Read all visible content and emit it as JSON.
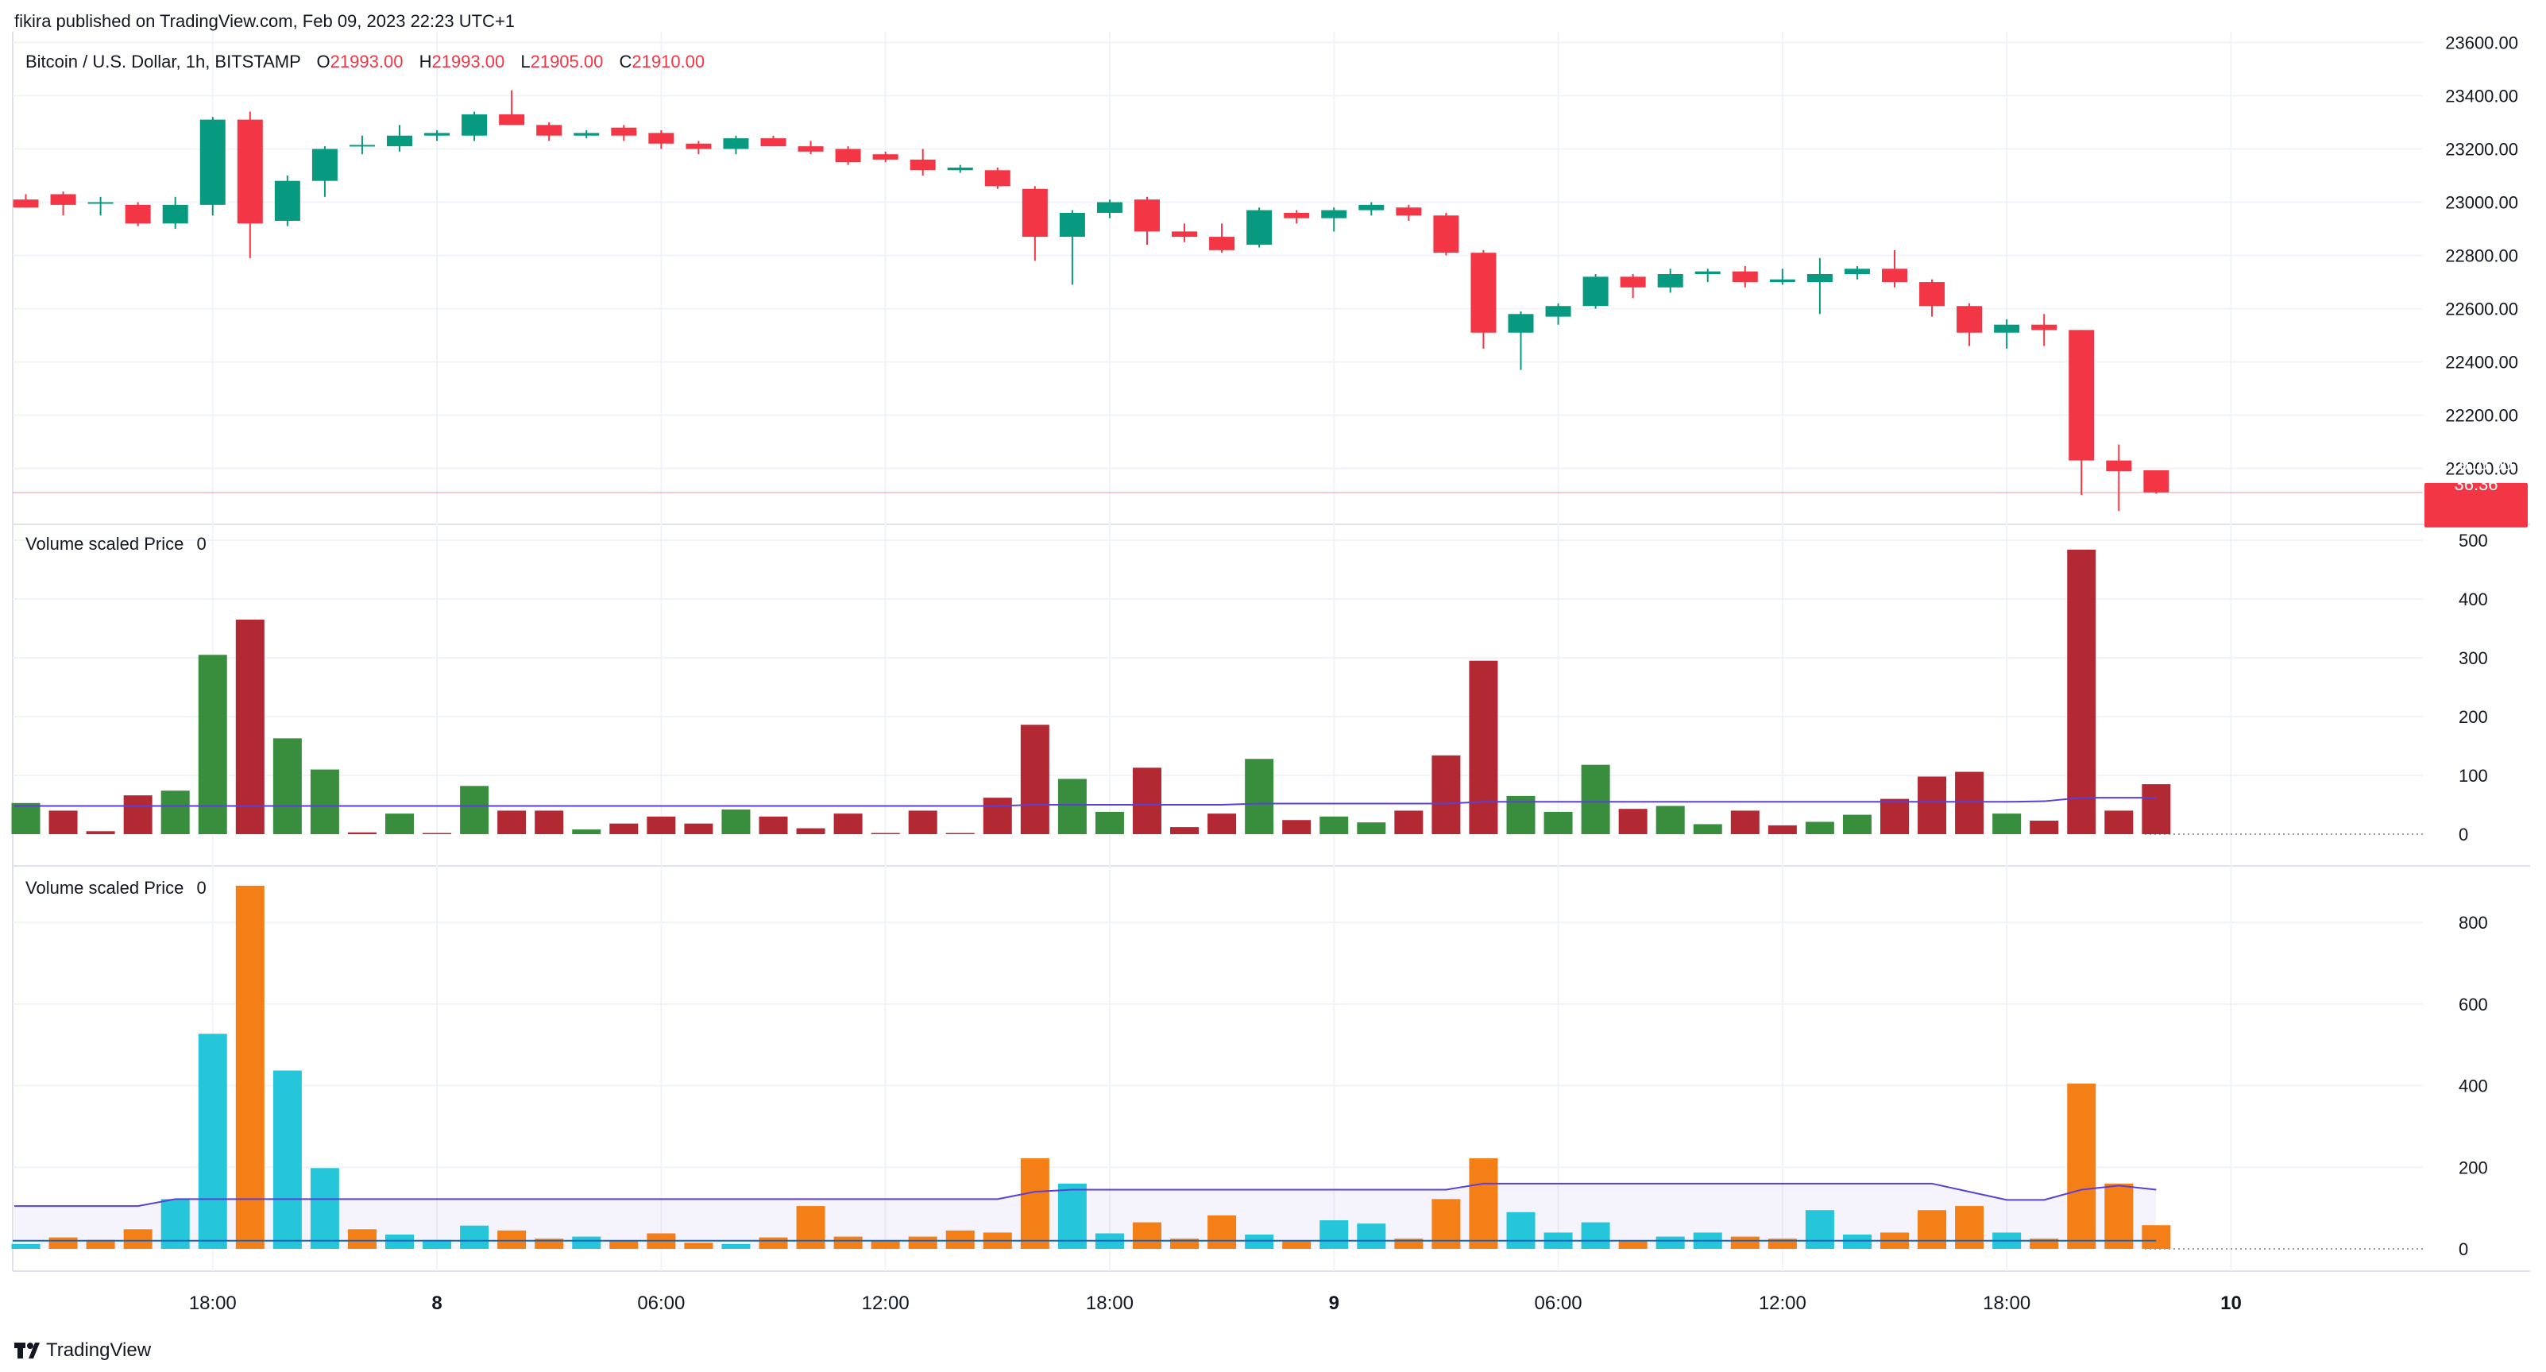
{
  "header": {
    "published": "fikira published on TradingView.com, Feb 09, 2023 22:23 UTC+1"
  },
  "footer": {
    "brand": "TradingView"
  },
  "colors": {
    "up": "#089981",
    "down": "#f23645",
    "vol_up": "#388e3c",
    "vol_down": "#b22833",
    "vol2_up": "#26c6da",
    "vol2_down": "#f57f17",
    "ma": "#5b3fd6",
    "grid": "#f0f3fa",
    "text": "#131722",
    "muted": "#787b86"
  },
  "chart_data": [
    {
      "type": "candlestick",
      "pane": "price",
      "legend": {
        "symbol": "Bitcoin / U.S. Dollar, 1h, BITSTAMP",
        "o_label": "O",
        "o": "21993.00",
        "h_label": "H",
        "h": "21993.00",
        "l_label": "L",
        "l": "21905.00",
        "c_label": "C",
        "c": "21910.00"
      },
      "last_price_label": "21910.00",
      "countdown_label": "36:36",
      "last_price": 21910,
      "ylim": [
        21820,
        23640
      ],
      "yticks": [
        22000,
        22200,
        22400,
        22600,
        22800,
        23000,
        23200,
        23400,
        23600
      ],
      "ytick_labels": [
        "22000.00",
        "22200.00",
        "22400.00",
        "22600.00",
        "22800.00",
        "23000.00",
        "23200.00",
        "23400.00",
        "23600.00"
      ],
      "x_labels": [
        {
          "index": 5,
          "text": "18:00",
          "bold": false
        },
        {
          "index": 11,
          "text": "8",
          "bold": true
        },
        {
          "index": 17,
          "text": "06:00",
          "bold": false
        },
        {
          "index": 23,
          "text": "12:00",
          "bold": false
        },
        {
          "index": 29,
          "text": "18:00",
          "bold": false
        },
        {
          "index": 35,
          "text": "9",
          "bold": true
        },
        {
          "index": 41,
          "text": "06:00",
          "bold": false
        },
        {
          "index": 47,
          "text": "12:00",
          "bold": false
        },
        {
          "index": 53,
          "text": "18:00",
          "bold": false
        },
        {
          "index": 59,
          "text": "10",
          "bold": true
        }
      ],
      "ohlc": [
        [
          23010,
          23030,
          22980,
          22980
        ],
        [
          23030,
          23040,
          22950,
          22990
        ],
        [
          22995,
          23020,
          22950,
          23000
        ],
        [
          22990,
          23000,
          22910,
          22920
        ],
        [
          22920,
          23020,
          22900,
          22990
        ],
        [
          22990,
          23320,
          22950,
          23310
        ],
        [
          23310,
          23340,
          22790,
          22920
        ],
        [
          22930,
          23100,
          22910,
          23080
        ],
        [
          23080,
          23210,
          23020,
          23200
        ],
        [
          23210,
          23250,
          23180,
          23215
        ],
        [
          23210,
          23290,
          23190,
          23250
        ],
        [
          23250,
          23270,
          23230,
          23260
        ],
        [
          23250,
          23340,
          23230,
          23330
        ],
        [
          23330,
          23420,
          23300,
          23290
        ],
        [
          23290,
          23300,
          23230,
          23250
        ],
        [
          23250,
          23270,
          23240,
          23260
        ],
        [
          23280,
          23290,
          23230,
          23250
        ],
        [
          23260,
          23270,
          23200,
          23220
        ],
        [
          23220,
          23230,
          23180,
          23200
        ],
        [
          23200,
          23250,
          23180,
          23240
        ],
        [
          23240,
          23250,
          23210,
          23210
        ],
        [
          23210,
          23230,
          23180,
          23190
        ],
        [
          23200,
          23210,
          23140,
          23150
        ],
        [
          23180,
          23190,
          23150,
          23160
        ],
        [
          23160,
          23200,
          23100,
          23120
        ],
        [
          23120,
          23140,
          23110,
          23130
        ],
        [
          23120,
          23130,
          23050,
          23060
        ],
        [
          23050,
          23060,
          22780,
          22870
        ],
        [
          22870,
          22970,
          22690,
          22960
        ],
        [
          22960,
          23010,
          22940,
          23000
        ],
        [
          23010,
          23020,
          22840,
          22890
        ],
        [
          22890,
          22920,
          22850,
          22870
        ],
        [
          22870,
          22920,
          22810,
          22820
        ],
        [
          22840,
          22980,
          22830,
          22970
        ],
        [
          22960,
          22970,
          22920,
          22940
        ],
        [
          22940,
          22980,
          22890,
          22970
        ],
        [
          22970,
          23000,
          22950,
          22990
        ],
        [
          22980,
          22990,
          22930,
          22950
        ],
        [
          22950,
          22960,
          22800,
          22810
        ],
        [
          22810,
          22820,
          22450,
          22510
        ],
        [
          22510,
          22590,
          22370,
          22580
        ],
        [
          22570,
          22620,
          22540,
          22610
        ],
        [
          22610,
          22730,
          22600,
          22720
        ],
        [
          22720,
          22730,
          22640,
          22680
        ],
        [
          22680,
          22750,
          22660,
          22730
        ],
        [
          22730,
          22750,
          22700,
          22740
        ],
        [
          22740,
          22760,
          22680,
          22700
        ],
        [
          22700,
          22750,
          22690,
          22710
        ],
        [
          22700,
          22790,
          22580,
          22730
        ],
        [
          22730,
          22760,
          22710,
          22750
        ],
        [
          22750,
          22820,
          22680,
          22700
        ],
        [
          22700,
          22710,
          22570,
          22610
        ],
        [
          22610,
          22620,
          22460,
          22510
        ],
        [
          22510,
          22560,
          22450,
          22540
        ],
        [
          22540,
          22580,
          22460,
          22520
        ],
        [
          22520,
          22520,
          21900,
          22030
        ],
        [
          22030,
          22090,
          21840,
          21990
        ],
        [
          21993,
          21993,
          21905,
          21910
        ]
      ]
    },
    {
      "type": "bar",
      "pane": "volume-1",
      "title": "Volume scaled Price",
      "title_value": "0",
      "ylim": [
        0,
        500
      ],
      "yticks": [
        0,
        100,
        200,
        300,
        400,
        500
      ],
      "values": [
        53,
        40,
        5,
        66,
        74,
        305,
        365,
        163,
        110,
        3,
        35,
        2,
        82,
        40,
        40,
        8,
        18,
        30,
        18,
        42,
        30,
        10,
        35,
        2,
        40,
        2,
        62,
        186,
        94,
        38,
        113,
        12,
        35,
        128,
        24,
        30,
        20,
        40,
        134,
        295,
        65,
        38,
        118,
        43,
        48,
        17,
        40,
        15,
        21,
        33,
        60,
        98,
        106,
        35,
        23,
        484,
        40,
        85
      ],
      "up": [
        true,
        false,
        false,
        false,
        true,
        true,
        false,
        true,
        true,
        false,
        true,
        false,
        true,
        false,
        false,
        true,
        false,
        false,
        false,
        true,
        false,
        false,
        false,
        false,
        false,
        false,
        false,
        false,
        true,
        true,
        false,
        false,
        false,
        true,
        false,
        true,
        true,
        false,
        false,
        false,
        true,
        true,
        true,
        false,
        true,
        true,
        false,
        false,
        true,
        true,
        false,
        false,
        false,
        true,
        false,
        false,
        false,
        false
      ],
      "ma": [
        48,
        48,
        48,
        48,
        48,
        48,
        48,
        48,
        48,
        48,
        48,
        48,
        48,
        48,
        48,
        48,
        48,
        48,
        48,
        48,
        48,
        48,
        48,
        48,
        48,
        48,
        48,
        50,
        50,
        50,
        50,
        50,
        50,
        52,
        52,
        52,
        52,
        52,
        52,
        55,
        55,
        55,
        55,
        55,
        55,
        55,
        55,
        55,
        55,
        55,
        55,
        55,
        55,
        55,
        56,
        62,
        62,
        62
      ]
    },
    {
      "type": "bar",
      "pane": "volume-2",
      "title": "Volume scaled Price",
      "title_value": "0",
      "ylim": [
        0,
        880
      ],
      "yticks": [
        0,
        200,
        400,
        600,
        800
      ],
      "values": [
        12,
        28,
        22,
        48,
        122,
        527,
        890,
        437,
        198,
        48,
        35,
        22,
        57,
        45,
        25,
        30,
        20,
        38,
        15,
        12,
        28,
        105,
        30,
        20,
        30,
        45,
        40,
        222,
        160,
        38,
        65,
        25,
        82,
        35,
        20,
        70,
        62,
        25,
        122,
        222,
        90,
        40,
        65,
        20,
        30,
        40,
        30,
        25,
        95,
        35,
        40,
        95,
        105,
        40,
        25,
        405,
        160,
        58
      ],
      "up": [
        true,
        false,
        false,
        false,
        true,
        true,
        false,
        true,
        true,
        false,
        true,
        true,
        true,
        false,
        false,
        true,
        false,
        false,
        false,
        true,
        false,
        false,
        false,
        false,
        false,
        false,
        false,
        false,
        true,
        true,
        false,
        false,
        false,
        true,
        false,
        true,
        true,
        false,
        false,
        false,
        true,
        true,
        true,
        false,
        true,
        true,
        false,
        false,
        true,
        true,
        false,
        false,
        false,
        true,
        false,
        false,
        false,
        false
      ],
      "ma": [
        105,
        105,
        105,
        105,
        122,
        122,
        122,
        122,
        122,
        122,
        122,
        122,
        122,
        122,
        122,
        122,
        122,
        122,
        122,
        122,
        122,
        122,
        122,
        122,
        122,
        122,
        122,
        140,
        145,
        145,
        145,
        145,
        145,
        145,
        145,
        145,
        145,
        145,
        145,
        160,
        160,
        160,
        160,
        160,
        160,
        160,
        160,
        160,
        160,
        160,
        160,
        160,
        140,
        120,
        120,
        145,
        155,
        145
      ]
    }
  ]
}
